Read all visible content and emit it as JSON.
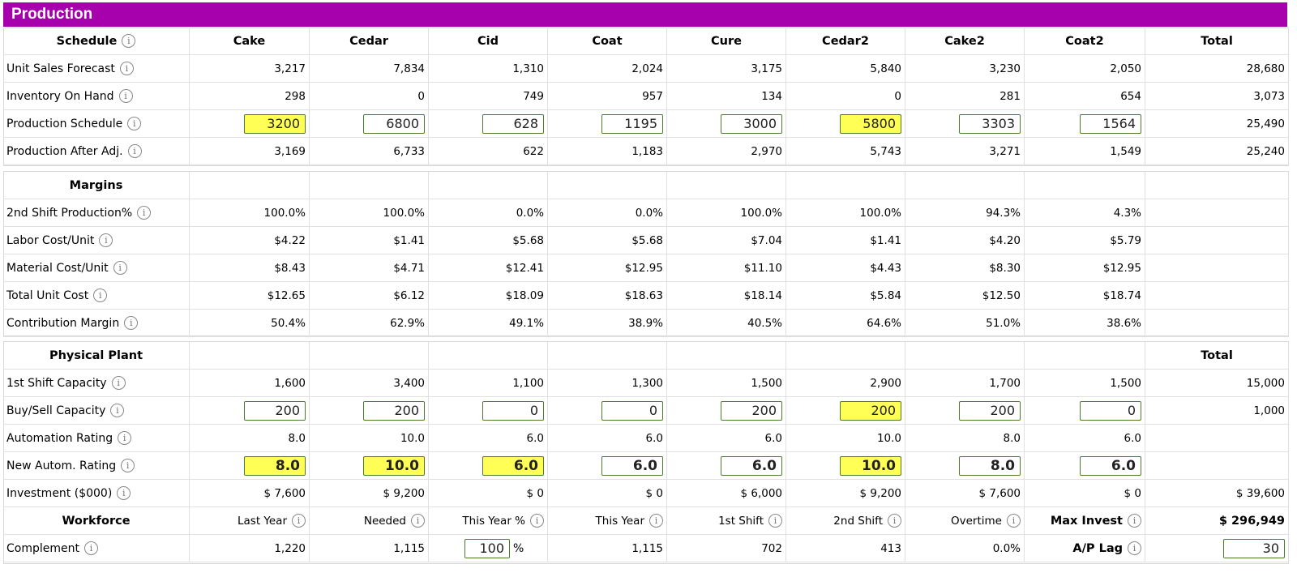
{
  "title": "Production",
  "colors": {
    "header_bg": "#a700ad",
    "highlight": "#ffff55",
    "input_border": "#4a7a2a"
  },
  "columns": [
    "Cake",
    "Cedar",
    "Cid",
    "Coat",
    "Cure",
    "Cedar2",
    "Cake2",
    "Coat2"
  ],
  "schedule": {
    "heading": "Schedule",
    "total_heading": "Total",
    "rows": [
      {
        "label": "Unit Sales Forecast",
        "values": [
          "3,217",
          "7,834",
          "1,310",
          "2,024",
          "3,175",
          "5,840",
          "3,230",
          "2,050"
        ],
        "total": "28,680"
      },
      {
        "label": "Inventory On Hand",
        "values": [
          "298",
          "0",
          "749",
          "957",
          "134",
          "0",
          "281",
          "654"
        ],
        "total": "3,073"
      },
      {
        "label": "Production Schedule",
        "inputs": [
          "3200",
          "6800",
          "628",
          "1195",
          "3000",
          "5800",
          "3303",
          "1564"
        ],
        "highlighted": [
          true,
          false,
          false,
          false,
          false,
          true,
          false,
          false
        ],
        "total": "25,490"
      },
      {
        "label": "Production After Adj.",
        "values": [
          "3,169",
          "6,733",
          "622",
          "1,183",
          "2,970",
          "5,743",
          "3,271",
          "1,549"
        ],
        "total": "25,240"
      }
    ]
  },
  "margins": {
    "heading": "Margins",
    "rows": [
      {
        "label": "2nd Shift Production%",
        "values": [
          "100.0%",
          "100.0%",
          "0.0%",
          "0.0%",
          "100.0%",
          "100.0%",
          "94.3%",
          "4.3%"
        ]
      },
      {
        "label": "Labor Cost/Unit",
        "values": [
          "$4.22",
          "$1.41",
          "$5.68",
          "$5.68",
          "$7.04",
          "$1.41",
          "$4.20",
          "$5.79"
        ]
      },
      {
        "label": "Material Cost/Unit",
        "values": [
          "$8.43",
          "$4.71",
          "$12.41",
          "$12.95",
          "$11.10",
          "$4.43",
          "$8.30",
          "$12.95"
        ]
      },
      {
        "label": "Total Unit Cost",
        "values": [
          "$12.65",
          "$6.12",
          "$18.09",
          "$18.63",
          "$18.14",
          "$5.84",
          "$12.50",
          "$18.74"
        ]
      },
      {
        "label": "Contribution Margin",
        "values": [
          "50.4%",
          "62.9%",
          "49.1%",
          "38.9%",
          "40.5%",
          "64.6%",
          "51.0%",
          "38.6%"
        ]
      }
    ]
  },
  "plant": {
    "heading": "Physical Plant",
    "total_heading": "Total",
    "rows": [
      {
        "label": "1st Shift Capacity",
        "values": [
          "1,600",
          "3,400",
          "1,100",
          "1,300",
          "1,500",
          "2,900",
          "1,700",
          "1,500"
        ],
        "total": "15,000"
      },
      {
        "label": "Buy/Sell Capacity",
        "inputs": [
          "200",
          "200",
          "0",
          "0",
          "200",
          "200",
          "200",
          "0"
        ],
        "highlighted": [
          false,
          false,
          false,
          false,
          false,
          true,
          false,
          false
        ],
        "total": "1,000"
      },
      {
        "label": "Automation Rating",
        "values": [
          "8.0",
          "10.0",
          "6.0",
          "6.0",
          "6.0",
          "10.0",
          "8.0",
          "6.0"
        ]
      },
      {
        "label": "New Autom. Rating",
        "inputs": [
          "8.0",
          "10.0",
          "6.0",
          "6.0",
          "6.0",
          "10.0",
          "8.0",
          "6.0"
        ],
        "highlighted": [
          true,
          true,
          true,
          false,
          false,
          true,
          false,
          false
        ]
      },
      {
        "label": "Investment ($000)",
        "values": [
          "$ 7,600",
          "$ 9,200",
          "$ 0",
          "$ 0",
          "$ 6,000",
          "$ 9,200",
          "$ 7,600",
          "$ 0"
        ],
        "total": "$ 39,600"
      }
    ]
  },
  "workforce": {
    "heading": "Workforce",
    "headers": [
      "Last Year",
      "Needed",
      "This Year %",
      "This Year",
      "1st Shift",
      "2nd Shift",
      "Overtime"
    ],
    "max_invest_label": "Max Invest",
    "max_invest_value": "$ 296,949",
    "complement_label": "Complement",
    "complement": {
      "last_year": "1,220",
      "needed": "1,115",
      "this_year_pct": "100",
      "pct_sign": "%",
      "this_year": "1,115",
      "first_shift": "702",
      "second_shift": "413",
      "overtime": "0.0%"
    },
    "ap_lag_label": "A/P Lag",
    "ap_lag_value": "30"
  }
}
